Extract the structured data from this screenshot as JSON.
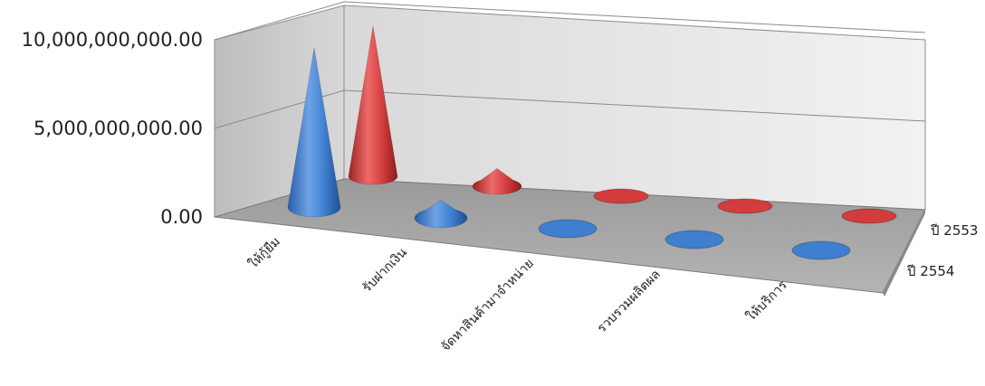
{
  "chart_data": {
    "type": "bar",
    "subtype": "3d-cone",
    "categories": [
      "ให้กู้ยืม",
      "รับฝากเงิน",
      "จัดหาสินค้ามาจำหน่าย",
      "รวบรวมผลิตผล",
      "ให้บริการ"
    ],
    "series": [
      {
        "name": "ปี 2554",
        "color": "#3f7fd0",
        "values": [
          9000000000,
          1000000000,
          0,
          0,
          0
        ]
      },
      {
        "name": "ปี 2553",
        "color": "#d23c3c",
        "values": [
          8500000000,
          1000000000,
          0,
          0,
          0
        ]
      }
    ],
    "ylim": [
      0,
      10000000000
    ],
    "yticks": [
      "0.00",
      "5,000,000,000.00",
      "10,000,000,000.00"
    ],
    "grid": true,
    "legend": "none"
  }
}
